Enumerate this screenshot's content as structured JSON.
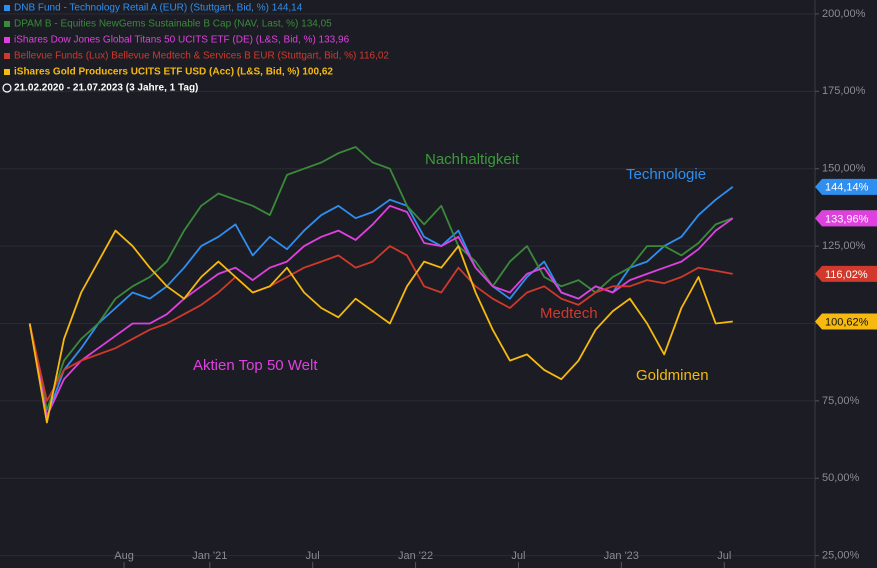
{
  "chart_data": {
    "type": "line",
    "subtitle": "21.02.2020 - 21.07.2023  (3 Jahre, 1 Tag)",
    "x": [
      "2020-02",
      "2020-03",
      "2020-04",
      "2020-05",
      "2020-06",
      "2020-07",
      "2020-08",
      "2020-09",
      "2020-10",
      "2020-11",
      "2020-12",
      "2021-01",
      "2021-02",
      "2021-03",
      "2021-04",
      "2021-05",
      "2021-06",
      "2021-07",
      "2021-08",
      "2021-09",
      "2021-10",
      "2021-11",
      "2021-12",
      "2022-01",
      "2022-02",
      "2022-03",
      "2022-04",
      "2022-05",
      "2022-06",
      "2022-07",
      "2022-08",
      "2022-09",
      "2022-10",
      "2022-11",
      "2022-12",
      "2023-01",
      "2023-02",
      "2023-03",
      "2023-04",
      "2023-05",
      "2023-06",
      "2023-07"
    ],
    "xlim": [
      "2020-01",
      "2023-12"
    ],
    "xticks": [
      {
        "value": "2020-08",
        "label": "Aug"
      },
      {
        "value": "2021-01",
        "label": "Jan '21"
      },
      {
        "value": "2021-07",
        "label": "Jul"
      },
      {
        "value": "2022-01",
        "label": "Jan '22"
      },
      {
        "value": "2022-07",
        "label": "Jul"
      },
      {
        "value": "2023-01",
        "label": "Jan '23"
      },
      {
        "value": "2023-07",
        "label": "Jul"
      }
    ],
    "ylim": [
      21,
      204.5
    ],
    "yticks": [
      {
        "value": 25,
        "label": "25,00%"
      },
      {
        "value": 50,
        "label": "50,00%"
      },
      {
        "value": 75,
        "label": "75,00%"
      },
      {
        "value": 100,
        "label": "100,00%"
      },
      {
        "value": 125,
        "label": "125,00%"
      },
      {
        "value": 150,
        "label": "150,00%"
      },
      {
        "value": 175,
        "label": "175,00%"
      },
      {
        "value": 200,
        "label": "200,00%"
      }
    ],
    "grid": true,
    "series": [
      {
        "name": "DNB Fund - Technology Retail A (EUR) (Stuttgart, Bid, %)  144,14",
        "color": "#2f8ff0",
        "end_label": "144,14%",
        "values": [
          100,
          70,
          85,
          92,
          100,
          105,
          110,
          108,
          112,
          118,
          125,
          128,
          132,
          122,
          128,
          124,
          130,
          135,
          138,
          134,
          136,
          140,
          138,
          128,
          125,
          130,
          118,
          112,
          108,
          115,
          120,
          110,
          108,
          112,
          110,
          118,
          120,
          125,
          128,
          135,
          140,
          144.14
        ]
      },
      {
        "name": "DPAM B - Equities NewGems Sustainable B Cap (NAV, Last, %)  134,05",
        "color": "#3a8a3a",
        "end_label": "134,05%",
        "values": [
          100,
          72,
          88,
          95,
          100,
          108,
          112,
          115,
          120,
          130,
          138,
          142,
          140,
          138,
          135,
          148,
          150,
          152,
          155,
          157,
          152,
          150,
          138,
          132,
          138,
          125,
          120,
          112,
          120,
          125,
          115,
          112,
          114,
          110,
          115,
          118,
          125,
          125,
          122,
          126,
          132,
          134.05
        ]
      },
      {
        "name": "iShares Dow Jones Global Titans 50 UCITS ETF (DE) (L&S, Bid, %)  133,96",
        "color": "#e040e0",
        "end_label": "133,96%",
        "values": [
          100,
          70,
          82,
          88,
          92,
          96,
          100,
          100,
          103,
          108,
          112,
          116,
          118,
          114,
          118,
          120,
          125,
          128,
          130,
          127,
          132,
          138,
          136,
          126,
          125,
          128,
          118,
          112,
          110,
          116,
          118,
          110,
          108,
          112,
          110,
          114,
          116,
          118,
          120,
          124,
          130,
          133.96
        ]
      },
      {
        "name": "Bellevue Funds (Lux) Bellevue Medtech & Services B EUR (Stuttgart, Bid, %)  116,02",
        "color": "#d0392b",
        "end_label": "116,02%",
        "values": [
          100,
          75,
          85,
          88,
          90,
          92,
          95,
          98,
          100,
          103,
          106,
          110,
          115,
          110,
          112,
          115,
          118,
          120,
          122,
          118,
          120,
          125,
          122,
          112,
          110,
          118,
          112,
          108,
          105,
          110,
          112,
          108,
          106,
          110,
          112,
          112,
          114,
          113,
          115,
          118,
          117,
          116.02
        ]
      },
      {
        "name": "iShares Gold Producers UCITS ETF USD (Acc) (L&S, Bid, %)  100,62",
        "color": "#f5b90f",
        "end_label": "100,62%",
        "values": [
          100,
          68,
          95,
          110,
          120,
          130,
          125,
          118,
          112,
          108,
          115,
          120,
          115,
          110,
          112,
          118,
          110,
          105,
          102,
          108,
          104,
          100,
          112,
          120,
          118,
          125,
          110,
          98,
          88,
          90,
          85,
          82,
          88,
          98,
          104,
          108,
          100,
          90,
          105,
          115,
          100,
          100.62
        ]
      }
    ],
    "annotations": [
      {
        "text": "Nachhaltigkeit",
        "color": "#3a9a3a"
      },
      {
        "text": "Technologie",
        "color": "#2f8ff0"
      },
      {
        "text": "Medtech",
        "color": "#d0392b"
      },
      {
        "text": "Aktien Top 50 Welt",
        "color": "#e040e0"
      },
      {
        "text": "Goldminen",
        "color": "#f5b90f"
      }
    ]
  }
}
